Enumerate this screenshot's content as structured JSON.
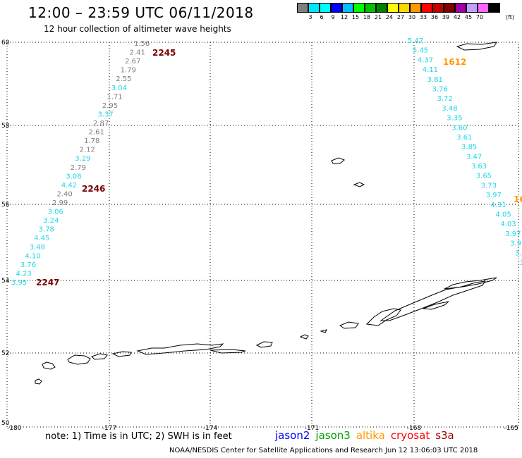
{
  "header": {
    "title": "12:00 – 23:59 UTC 06/11/2018",
    "subtitle": "12 hour collection of altimeter wave heights"
  },
  "colorbar": {
    "colors": [
      "#808080",
      "#00e5ff",
      "#00ffff",
      "#0000ff",
      "#00bfff",
      "#00ff00",
      "#00c000",
      "#008000",
      "#ffff00",
      "#ffd700",
      "#ff9900",
      "#ff0000",
      "#c00000",
      "#800000",
      "#a000a0",
      "#c0a0ff",
      "#ff66ff",
      "#000000"
    ],
    "labels": [
      "3",
      "6",
      "9",
      "12",
      "15",
      "18",
      "21",
      "24",
      "27",
      "30",
      "33",
      "36",
      "39",
      "42",
      "45",
      "70"
    ],
    "unit": "(ft)"
  },
  "map": {
    "lat_labels": [
      "60",
      "58",
      "56",
      "54",
      "52",
      "50"
    ],
    "lon_labels": [
      "-180",
      "-177",
      "-174",
      "-171",
      "-168",
      "-165"
    ],
    "colors": {
      "gray": "#7f7f7f",
      "cyan": "#1ed6e6",
      "dark_red": "#7a0000",
      "orange": "#ff9900",
      "coast": "#000000",
      "grid": "#000000"
    },
    "track_west": {
      "values": [
        "1.56",
        "2.41",
        "2.67",
        "1.79",
        "2.55",
        "3.04",
        "1.71",
        "2.95",
        "3.37",
        "2.87",
        "2.61",
        "1.78",
        "2.12",
        "3.29",
        "2.79",
        "3.08",
        "4.42",
        "2.40",
        "2.99",
        "3.06",
        "3.24",
        "3.78",
        "4.45",
        "3.48",
        "4.10",
        "3.76",
        "4.23",
        "3.95"
      ],
      "colors": [
        "gray",
        "gray",
        "gray",
        "gray",
        "gray",
        "cyan",
        "gray",
        "gray",
        "cyan",
        "gray",
        "gray",
        "gray",
        "gray",
        "cyan",
        "gray",
        "cyan",
        "cyan",
        "gray",
        "gray",
        "cyan",
        "cyan",
        "cyan",
        "cyan",
        "cyan",
        "cyan",
        "cyan",
        "cyan",
        "cyan"
      ]
    },
    "track_east": {
      "values": [
        "5.47",
        "5.45",
        "4.37",
        "4.11",
        "3.81",
        "3.76",
        "3.72",
        "3.48",
        "3.35",
        "3.60",
        "3.61",
        "3.85",
        "3.47",
        "3.63",
        "3.65",
        "3.73",
        "3.97",
        "4.31",
        "4.05",
        "4.03",
        "3.97",
        "3.9",
        "3.",
        "3"
      ]
    },
    "time_labels": [
      {
        "text": "2245",
        "color": "dark_red"
      },
      {
        "text": "2246",
        "color": "dark_red"
      },
      {
        "text": "2247",
        "color": "dark_red"
      },
      {
        "text": "1612",
        "color": "orange"
      },
      {
        "text": "16",
        "color": "orange"
      }
    ]
  },
  "footer": {
    "note": "note: 1) Time is in UTC; 2) SWH is in feet",
    "satellites": [
      {
        "name": "jason2",
        "color": "#0000ff"
      },
      {
        "name": "jason3",
        "color": "#00a000"
      },
      {
        "name": "altika",
        "color": "#ff9900"
      },
      {
        "name": "cryosat",
        "color": "#ff0000"
      },
      {
        "name": "s3a",
        "color": "#a00000"
      }
    ],
    "credit": "NOAA/NESDIS Center for Satellite Applications and Research    Jun 12 13:06:03 UTC 2018"
  }
}
